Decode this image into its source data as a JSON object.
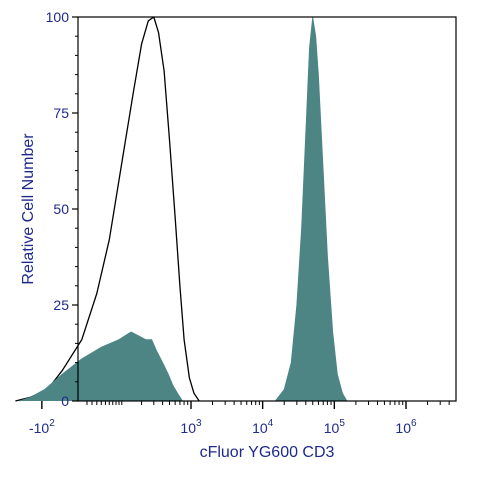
{
  "chart_data": {
    "type": "area",
    "title": "",
    "xlabel": "cFluor YG600 CD3",
    "ylabel": "Relative Cell Number",
    "x_scale": "biexponential",
    "xlim": [
      -300,
      2000000
    ],
    "ylim": [
      0,
      100
    ],
    "grid": false,
    "legend": "none",
    "y_ticks": [
      {
        "value": 0,
        "label": "0"
      },
      {
        "value": 25,
        "label": "25"
      },
      {
        "value": 50,
        "label": "50"
      },
      {
        "value": 75,
        "label": "75"
      },
      {
        "value": 100,
        "label": "100"
      }
    ],
    "x_ticks": [
      {
        "value": -100,
        "base": "-10",
        "exp": "2"
      },
      {
        "value": 1000,
        "base": "10",
        "exp": "3"
      },
      {
        "value": 10000,
        "base": "10",
        "exp": "4"
      },
      {
        "value": 100000,
        "base": "10",
        "exp": "5"
      },
      {
        "value": 1000000,
        "base": "10",
        "exp": "6"
      }
    ],
    "series": [
      {
        "style": "outline",
        "color": "#000000",
        "points": [
          [
            -250,
            0
          ],
          [
            -150,
            1
          ],
          [
            -80,
            3
          ],
          [
            -40,
            8
          ],
          [
            0,
            16
          ],
          [
            30,
            28
          ],
          [
            60,
            42
          ],
          [
            100,
            62
          ],
          [
            150,
            80
          ],
          [
            200,
            93
          ],
          [
            250,
            99
          ],
          [
            300,
            100
          ],
          [
            350,
            96
          ],
          [
            420,
            86
          ],
          [
            500,
            68
          ],
          [
            600,
            48
          ],
          [
            700,
            30
          ],
          [
            800,
            16
          ],
          [
            950,
            6
          ],
          [
            1100,
            2
          ],
          [
            1300,
            0
          ]
        ]
      },
      {
        "style": "filled",
        "color": "#4d8585",
        "points": [
          [
            -220,
            0
          ],
          [
            -150,
            1
          ],
          [
            -90,
            3
          ],
          [
            -40,
            7
          ],
          [
            0,
            11
          ],
          [
            40,
            14
          ],
          [
            90,
            16
          ],
          [
            140,
            18
          ],
          [
            180,
            17
          ],
          [
            230,
            16
          ],
          [
            280,
            16
          ],
          [
            330,
            13
          ],
          [
            400,
            10
          ],
          [
            480,
            7
          ],
          [
            560,
            4
          ],
          [
            650,
            2
          ],
          [
            760,
            0
          ]
        ]
      },
      {
        "style": "filled",
        "color": "#4d8585",
        "points": [
          [
            15000,
            0
          ],
          [
            20000,
            3
          ],
          [
            25000,
            10
          ],
          [
            30000,
            25
          ],
          [
            35000,
            45
          ],
          [
            40000,
            70
          ],
          [
            45000,
            92
          ],
          [
            50000,
            100
          ],
          [
            55000,
            95
          ],
          [
            60000,
            85
          ],
          [
            70000,
            60
          ],
          [
            80000,
            38
          ],
          [
            95000,
            18
          ],
          [
            110000,
            7
          ],
          [
            130000,
            2
          ],
          [
            150000,
            0
          ]
        ]
      }
    ]
  }
}
